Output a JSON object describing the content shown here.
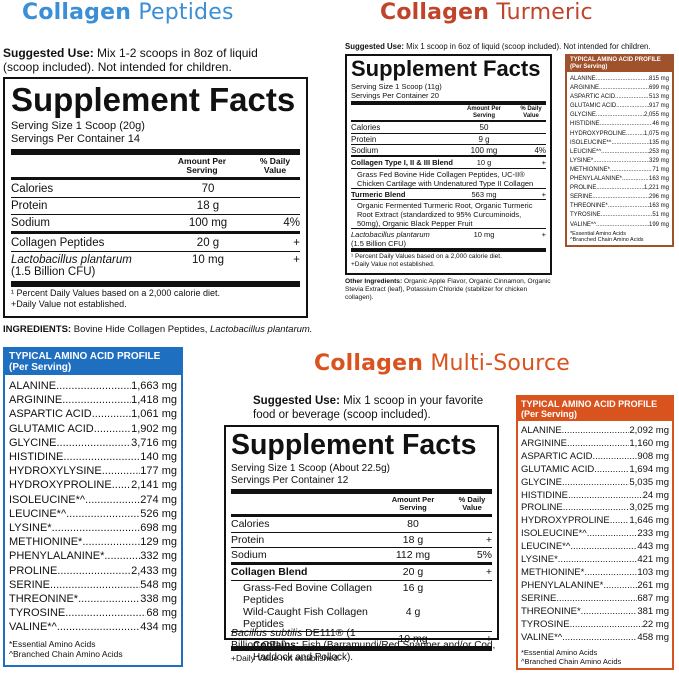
{
  "peptides": {
    "title_bold": "Collagen",
    "title_light": "Peptides",
    "suggested_label": "Suggested Use:",
    "suggested_text": " Mix 1-2 scoops in 8oz of liquid (scoop included). Not intended for children.",
    "facts_title": "Supplement Facts",
    "serving_size": "Serving Size 1 Scoop (20g)",
    "servings_per": "Servings Per Container 14",
    "amount_header": "Amount Per Serving",
    "dv_header": "% Daily Value",
    "rows": [
      {
        "name": "Calories",
        "amount": "70",
        "dv": ""
      },
      {
        "name": "Protein",
        "amount": "18 g",
        "dv": ""
      },
      {
        "name": "Sodium",
        "amount": "100 mg",
        "dv": "4%"
      },
      {
        "name": "Collagen Peptides",
        "amount": "20 g",
        "dv": "+"
      },
      {
        "name": "Lactobacillus plantarum",
        "name2": "(1.5 Billion CFU)",
        "amount": "10 mg",
        "dv": "+"
      }
    ],
    "footnote1": "¹ Percent Daily Values based on a 2,000 calorie diet.",
    "footnote2": "+Daily Value not established.",
    "ingredients_label": "INGREDIENTS:",
    "ingredients_text": " Bovine Hide Collagen Peptides, ",
    "ingredients_italic": "Lactobacillus plantarum.",
    "aa_title": "TYPICAL AMINO ACID PROFILE",
    "aa_sub": "(Per Serving)",
    "aa": [
      {
        "n": "ALANINE",
        "v": "1,663 mg"
      },
      {
        "n": "ARGININE",
        "v": "1,418 mg"
      },
      {
        "n": "ASPARTIC ACID",
        "v": "1,061 mg"
      },
      {
        "n": "GLUTAMIC ACID",
        "v": "1,902 mg"
      },
      {
        "n": "GLYCINE",
        "v": "3,716 mg"
      },
      {
        "n": "HISTIDINE",
        "v": "140 mg"
      },
      {
        "n": "HYDROXYLYSINE",
        "v": "177 mg"
      },
      {
        "n": "HYDROXYPROLINE",
        "v": "2,141 mg"
      },
      {
        "n": "ISOLEUCINE*^",
        "v": "274 mg"
      },
      {
        "n": "LEUCINE*^",
        "v": "526 mg"
      },
      {
        "n": "LYSINE*",
        "v": "698 mg"
      },
      {
        "n": "METHIONINE*",
        "v": "129 mg"
      },
      {
        "n": "PHENYLALANINE*",
        "v": "332 mg"
      },
      {
        "n": "PROLINE",
        "v": "2,433 mg"
      },
      {
        "n": "SERINE",
        "v": "548 mg"
      },
      {
        "n": "THREONINE*",
        "v": "338 mg"
      },
      {
        "n": "TYROSINE",
        "v": "68 mg"
      },
      {
        "n": "VALINE*^",
        "v": "434 mg"
      }
    ],
    "aa_note1": "*Essential Amino Acids",
    "aa_note2": "^Branched Chain Amino Acids"
  },
  "turmeric": {
    "title_bold": "Collagen",
    "title_light": "Turmeric",
    "suggested_label": "Suggested Use:",
    "suggested_text": " Mix 1 scoop in 6oz of liquid (scoop included). Not intended for children.",
    "facts_title": "Supplement Facts",
    "serving_size": "Serving Size 1 Scoop (11g)",
    "servings_per": "Servings Per Container 20",
    "amount_header": "Amount Per Serving",
    "dv_header": "% Daily Value",
    "rows": [
      {
        "name": "Calories",
        "amount": "50",
        "dv": ""
      },
      {
        "name": "Protein",
        "amount": "9 g",
        "dv": ""
      },
      {
        "name": "Sodium",
        "amount": "100 mg",
        "dv": "4%"
      }
    ],
    "blend1_name": "Collagen Type I, II & III Blend",
    "blend1_amount": "10 g",
    "blend1_dv": "+",
    "blend1_desc": "Grass Fed Bovine Hide Collagen Peptides, UC-II® Chicken Cartilage with Undenatured Type II Collagen",
    "blend2_name": "Turmeric Blend",
    "blend2_amount": "563 mg",
    "blend2_dv": "+",
    "blend2_desc": "Organic Fermented Turmeric Root, Organic Turmeric Root Extract (standardized to 95% Curcuminoids, 50mg), Organic Black Pepper Fruit",
    "lacto_name": "Lactobacillus plantarum",
    "lacto_sub": "(1.5 Billion CFU)",
    "lacto_amount": "10 mg",
    "lacto_dv": "+",
    "footnote1": "¹ Percent Daily Values based on a 2,000 calorie diet.",
    "footnote2": "+Daily Value not established.",
    "other_label": "Other Ingredients:",
    "other_text": " Organic Apple Flavor, Organic Cinnamon, Organic Stevia Extract (leaf), Potassium Chloride (stabilizer for chicken collagen).",
    "aa_title": "TYPICAL AMINO ACID PROFILE",
    "aa_sub": "(Per Serving)",
    "aa": [
      {
        "n": "ALANINE",
        "v": "815 mg"
      },
      {
        "n": "ARGININE",
        "v": "699 mg"
      },
      {
        "n": "ASPARTIC ACID",
        "v": "513 mg"
      },
      {
        "n": "GLUTAMIC ACID",
        "v": "917 mg"
      },
      {
        "n": "GLYCINE",
        "v": "2,055 mg"
      },
      {
        "n": "HISTIDINE",
        "v": "46 mg"
      },
      {
        "n": "HYDROXYPROLINE",
        "v": "1,075 mg"
      },
      {
        "n": "ISOLEUCINE*^",
        "v": "135 mg"
      },
      {
        "n": "LEUCINE*^",
        "v": "253 mg"
      },
      {
        "n": "LYSINE*",
        "v": "329 mg"
      },
      {
        "n": "METHIONINE*",
        "v": "71 mg"
      },
      {
        "n": "PHENYLALANINE*",
        "v": "163 mg"
      },
      {
        "n": "PROLINE",
        "v": "1,221 mg"
      },
      {
        "n": "SERINE",
        "v": "296 mg"
      },
      {
        "n": "THREONINE*",
        "v": "163 mg"
      },
      {
        "n": "TYROSINE",
        "v": "51 mg"
      },
      {
        "n": "VALINE*^",
        "v": "199 mg"
      }
    ],
    "aa_note1": "*Essential Amino Acids",
    "aa_note2": "^Branched Chain Amino Acids"
  },
  "multi": {
    "title_bold": "Collagen",
    "title_light": "Multi-Source",
    "suggested_label": "Suggested Use:",
    "suggested_text": " Mix 1 scoop in your favorite food or beverage (scoop included).",
    "facts_title": "Supplement Facts",
    "serving_size": "Serving Size 1 Scoop (About 22.5g)",
    "servings_per": "Servings Per Container 12",
    "amount_header": "Amount Per Serving",
    "dv_header": "% Daily Value",
    "rows": [
      {
        "name": "Calories",
        "amount": "80",
        "dv": ""
      },
      {
        "name": "Protein",
        "amount": "18 g",
        "dv": "+"
      },
      {
        "name": "Sodium",
        "amount": "112 mg",
        "dv": "5%"
      }
    ],
    "blend_name": "Collagen Blend",
    "blend_amount": "20 g",
    "blend_dv": "+",
    "blend_item1": "Grass-Fed Bovine Collagen Peptides",
    "blend_item1_amt": "16 g",
    "blend_item2": "Wild-Caught Fish Collagen Peptides",
    "blend_item2_amt": "4 g",
    "bacillus_name": "Bacillus subtilis",
    "bacillus_rest": " DE111® (1 Billion CFU)",
    "bacillus_amount": "10 mg",
    "bacillus_dv": "+",
    "footnote": "+Daily Value not established.",
    "contains_label": "Contains:",
    "contains_text": " Fish (Barramundi/Red Snapper and/or Cod, Haddock and Pollock).",
    "aa_title": "TYPICAL AMINO ACID PROFILE",
    "aa_sub": "(Per Serving)",
    "aa": [
      {
        "n": "ALANINE",
        "v": "2,092 mg"
      },
      {
        "n": "ARGININE",
        "v": "1,160 mg"
      },
      {
        "n": "ASPARTIC ACID",
        "v": "908 mg"
      },
      {
        "n": "GLUTAMIC ACID",
        "v": "1,694 mg"
      },
      {
        "n": "GLYCINE",
        "v": "5,035 mg"
      },
      {
        "n": "HISTIDINE",
        "v": "24 mg"
      },
      {
        "n": "PROLINE",
        "v": "3,025 mg"
      },
      {
        "n": "HYDROXYPROLINE",
        "v": "1,646 mg"
      },
      {
        "n": "ISOLEUCINE*^",
        "v": "233 mg"
      },
      {
        "n": "LEUCINE*^",
        "v": "443 mg"
      },
      {
        "n": "LYSINE*",
        "v": "421 mg"
      },
      {
        "n": "METHIONINE*",
        "v": "103 mg"
      },
      {
        "n": "PHENYLALANINE*",
        "v": "261 mg"
      },
      {
        "n": "SERINE",
        "v": "687 mg"
      },
      {
        "n": "THREONINE*",
        "v": "381 mg"
      },
      {
        "n": "TYROSINE",
        "v": "22 mg"
      },
      {
        "n": "VALINE*^",
        "v": "458 mg"
      }
    ],
    "aa_note1": "*Essential Amino Acids",
    "aa_note2": "^Branched Chain Amino Acids"
  },
  "colors": {
    "blue": "#3a8fd6",
    "blue_dark": "#1f6fc0",
    "red": "#c0442a",
    "turmeric_brown": "#a0522d",
    "orange": "#d9531e"
  }
}
